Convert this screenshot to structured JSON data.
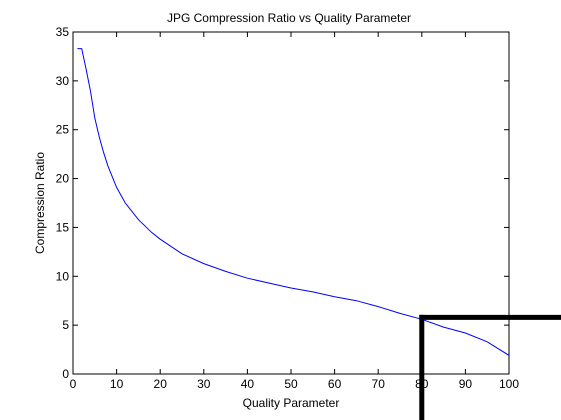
{
  "chart_data": {
    "type": "line",
    "title": "JPG Compression Ratio vs Quality Parameter",
    "xlabel": "Quality Parameter",
    "ylabel": "Compression Ratio",
    "xlim": [
      0,
      100
    ],
    "ylim": [
      0,
      35
    ],
    "xticks": [
      0,
      10,
      20,
      30,
      40,
      50,
      60,
      70,
      80,
      90,
      100
    ],
    "yticks": [
      0,
      5,
      10,
      15,
      20,
      25,
      30,
      35
    ],
    "grid": false,
    "series": [
      {
        "color": "#0000ff",
        "x": [
          1,
          2,
          3,
          4,
          5,
          6,
          7,
          8,
          10,
          12,
          15,
          18,
          20,
          25,
          30,
          35,
          40,
          45,
          50,
          55,
          60,
          65,
          70,
          75,
          80,
          85,
          90,
          95,
          100
        ],
        "y": [
          33.3,
          33.3,
          31.2,
          29.0,
          26.2,
          24.3,
          22.7,
          21.3,
          19.1,
          17.5,
          15.8,
          14.5,
          13.8,
          12.3,
          11.3,
          10.5,
          9.8,
          9.3,
          8.8,
          8.4,
          7.9,
          7.5,
          6.9,
          6.2,
          5.6,
          4.8,
          4.2,
          3.3,
          1.9
        ]
      }
    ],
    "annotation": {
      "type": "crosshair",
      "x": 80,
      "y": 5.8,
      "color": "#000000"
    }
  }
}
